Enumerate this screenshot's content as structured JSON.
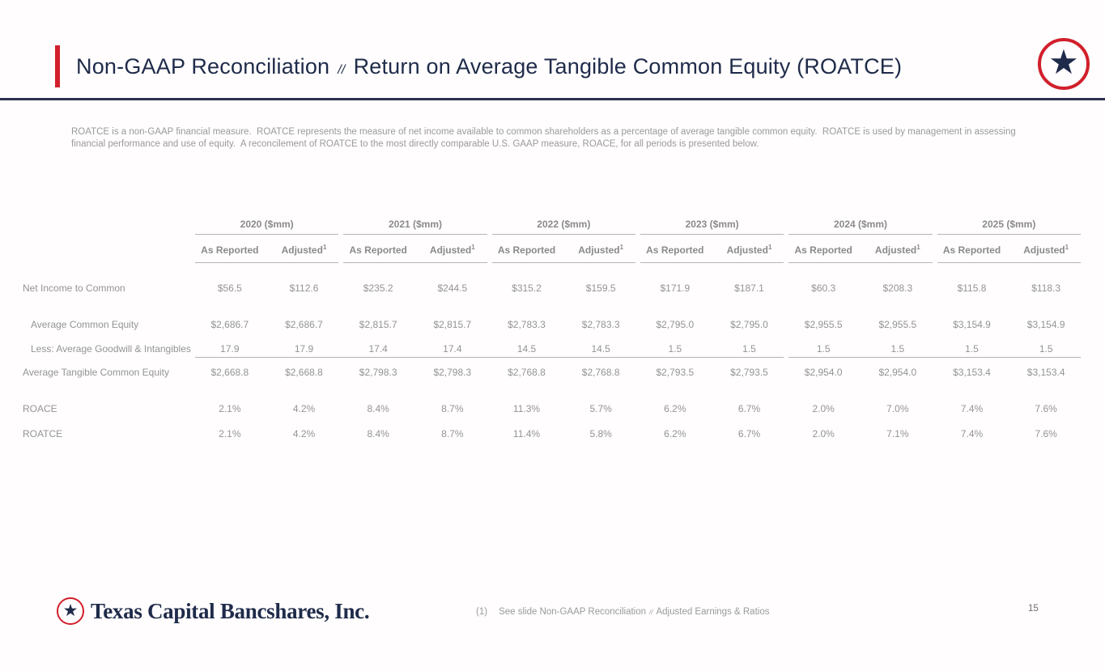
{
  "theme": {
    "navy": "#1f2b4a",
    "rule_navy": "#2a3150",
    "red": "#d1202b",
    "gray_head": "#8a8a8a",
    "gray_val": "#949494",
    "rule_gray": "#b5b5b5"
  },
  "header": {
    "title_part1": "Non-GAAP Reconciliation",
    "title_separator": "//",
    "title_part2": "Return on Average Tangible Common Equity (ROATCE)",
    "logo_star": "★"
  },
  "intro": {
    "text": "ROATCE is a non-GAAP financial measure.  ROATCE represents the measure of net income available to common shareholders as a percentage of average tangible common equity.  ROATCE is used by management in assessing financial performance and use of equity.  A reconcilement of ROATCE to the most directly comparable U.S. GAAP measure, ROACE, for all periods is presented below."
  },
  "table": {
    "year_groups": [
      {
        "label": "2020 ($mm)"
      },
      {
        "label": "2021 ($mm)"
      },
      {
        "label": "2022 ($mm)"
      },
      {
        "label": "2023 ($mm)"
      },
      {
        "label": "2024 ($mm)"
      },
      {
        "label": "2025 ($mm)"
      }
    ],
    "subheaders": {
      "as_reported": "As Reported",
      "adjusted": "Adjusted",
      "adjusted_note_ref": "1"
    },
    "rows": [
      {
        "label": "Net Income to Common",
        "values": [
          "$56.5",
          "$112.6",
          "$235.2",
          "$244.5",
          "$315.2",
          "$159.5",
          "$171.9",
          "$187.1",
          "$60.3",
          "$208.3",
          "$115.8",
          "$118.3"
        ]
      },
      {
        "label": "Average Common Equity",
        "values": [
          "$2,686.7",
          "$2,686.7",
          "$2,815.7",
          "$2,815.7",
          "$2,783.3",
          "$2,783.3",
          "$2,795.0",
          "$2,795.0",
          "$2,955.5",
          "$2,955.5",
          "$3,154.9",
          "$3,154.9"
        ]
      },
      {
        "label": "Less: Average Goodwill & Intangibles",
        "values": [
          "17.9",
          "17.9",
          "17.4",
          "17.4",
          "14.5",
          "14.5",
          "1.5",
          "1.5",
          "1.5",
          "1.5",
          "1.5",
          "1.5"
        ]
      },
      {
        "label": "Average Tangible Common Equity",
        "values": [
          "$2,668.8",
          "$2,668.8",
          "$2,798.3",
          "$2,798.3",
          "$2,768.8",
          "$2,768.8",
          "$2,793.5",
          "$2,793.5",
          "$2,954.0",
          "$2,954.0",
          "$3,153.4",
          "$3,153.4"
        ]
      },
      {
        "label": "ROACE",
        "values": [
          "2.1%",
          "4.2%",
          "8.4%",
          "8.7%",
          "11.3%",
          "5.7%",
          "6.2%",
          "6.7%",
          "2.0%",
          "7.0%",
          "7.4%",
          "7.6%"
        ]
      },
      {
        "label": "ROATCE",
        "values": [
          "2.1%",
          "4.2%",
          "8.4%",
          "8.7%",
          "11.4%",
          "5.8%",
          "6.2%",
          "6.7%",
          "2.0%",
          "7.1%",
          "7.4%",
          "7.6%"
        ]
      }
    ]
  },
  "footer": {
    "logo_star": "★",
    "wordmark": "Texas Capital Bancshares, Inc.",
    "footnote_ref": "(1)",
    "footnote_before": "See slide Non-GAAP Reconciliation",
    "footnote_separator": "//",
    "footnote_after": "Adjusted Earnings & Ratios",
    "page_number": "15"
  }
}
